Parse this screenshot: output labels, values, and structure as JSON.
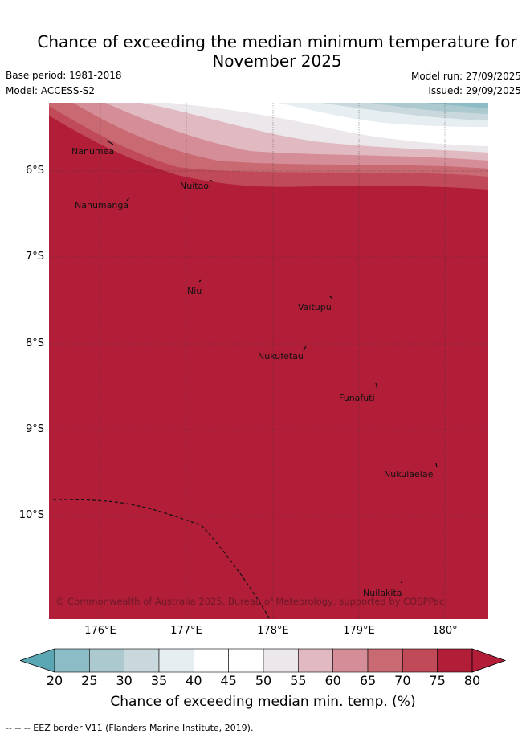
{
  "title_line1": "Chance of exceeding the median minimum temperature for",
  "title_line2": "November 2025",
  "base_period": "Base period: 1981-2018",
  "model": "Model: ACCESS-S2",
  "model_run": "Model run: 27/09/2025",
  "issued": "Issued: 29/09/2025",
  "y_ticks": [
    "6°S",
    "7°S",
    "8°S",
    "9°S",
    "10°S"
  ],
  "x_ticks": [
    "176°E",
    "177°E",
    "178°E",
    "179°E",
    "180°"
  ],
  "places": [
    "Nanumea",
    "Nuitao",
    "Nanumanga",
    "Niu",
    "Vaitupu",
    "Nukufetau",
    "Funafuti",
    "Nukulaelae",
    "Nuilakita"
  ],
  "copyright": "© Commonwealth of Australia 2025, Bureau of Meteorology, supported by COSPPac",
  "colorbar": {
    "ticks": [
      "20",
      "25",
      "30",
      "35",
      "40",
      "45",
      "50",
      "55",
      "60",
      "65",
      "70",
      "75",
      "80"
    ],
    "colors": [
      "#6aaeba",
      "#8cbcc6",
      "#abc9ce",
      "#c9d8dd",
      "#e7eef1",
      "#ffffff",
      "#ffffff",
      "#ebe7ea",
      "#e0b9c1",
      "#d58e98",
      "#c96972",
      "#c04a58",
      "#b21e38"
    ],
    "low_color": "#5aa6b3",
    "high_color": "#b21e38",
    "title": "Chance of exceeding median min. temp. (%)"
  },
  "footer": "--  --  -- EEZ border V11 (Flanders Marine Institute, 2019)."
}
